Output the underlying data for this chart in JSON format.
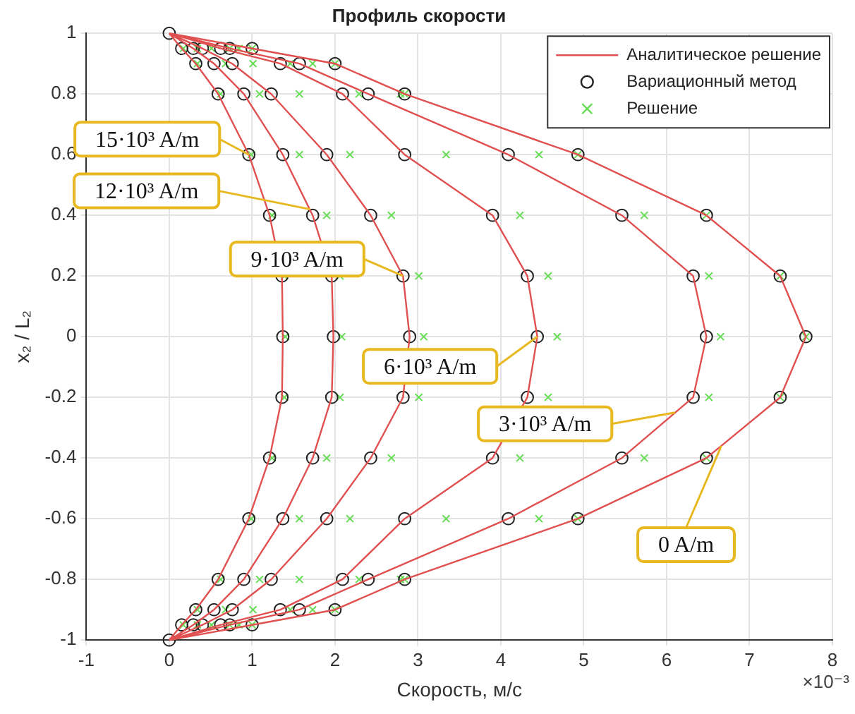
{
  "chart_data": {
    "type": "scatter",
    "title": "Профиль скорости",
    "xlabel": "Скорость, м/с",
    "ylabel": "x₂ / L₂",
    "xlim": [
      -1,
      8
    ],
    "xticks": [
      -1,
      0,
      1,
      2,
      3,
      4,
      5,
      6,
      7,
      8
    ],
    "ylim": [
      -1,
      1
    ],
    "yticks": [
      -1,
      -0.8,
      -0.6,
      -0.4,
      -0.2,
      0,
      0.2,
      0.4,
      0.6,
      0.8,
      1
    ],
    "grid": true,
    "legend": "top right",
    "series": [
      {
        "name": "Аналитическое решение",
        "type": "line",
        "color": "#e05050",
        "marker": "none",
        "line_style": "solid",
        "x": [
          0,
          1.0,
          2.0,
          2.84,
          4.93,
          6.48,
          7.37,
          7.68,
          7.37,
          6.48,
          4.93,
          2.84,
          2.0,
          1.0,
          0,
          null,
          0,
          0.73,
          1.57,
          2.4,
          4.09,
          5.46,
          6.32,
          6.48,
          6.32,
          5.46,
          4.09,
          2.4,
          1.57,
          0.73,
          0,
          null,
          0,
          0.62,
          1.34,
          2.09,
          2.84,
          3.9,
          4.32,
          4.44,
          4.32,
          3.9,
          2.84,
          2.09,
          1.34,
          0.62,
          0,
          null,
          0,
          0.4,
          0.76,
          1.23,
          1.9,
          2.43,
          2.82,
          2.9,
          2.82,
          2.43,
          1.9,
          1.23,
          0.76,
          0.4,
          0,
          null,
          0,
          0.29,
          0.54,
          0.9,
          1.37,
          1.73,
          1.96,
          1.98,
          1.96,
          1.73,
          1.37,
          0.9,
          0.54,
          0.29,
          0,
          null,
          0,
          0.15,
          0.32,
          0.59,
          0.96,
          1.21,
          1.36,
          1.37,
          1.36,
          1.21,
          0.96,
          0.59,
          0.32,
          0.15,
          0
        ],
        "values": [
          1,
          0.95,
          0.9,
          0.8,
          0.6,
          0.4,
          0.2,
          0,
          -0.2,
          -0.4,
          -0.6,
          -0.8,
          -0.9,
          -0.95,
          -1,
          null,
          1,
          0.95,
          0.9,
          0.8,
          0.6,
          0.4,
          0.2,
          0,
          -0.2,
          -0.4,
          -0.6,
          -0.8,
          -0.9,
          -0.95,
          -1,
          null,
          1,
          0.95,
          0.9,
          0.8,
          0.6,
          0.4,
          0.2,
          0,
          -0.2,
          -0.4,
          -0.6,
          -0.8,
          -0.9,
          -0.95,
          -1,
          null,
          1,
          0.95,
          0.9,
          0.8,
          0.6,
          0.4,
          0.2,
          0,
          -0.2,
          -0.4,
          -0.6,
          -0.8,
          -0.9,
          -0.95,
          -1,
          null,
          1,
          0.95,
          0.9,
          0.8,
          0.6,
          0.4,
          0.2,
          0,
          -0.2,
          -0.4,
          -0.6,
          -0.8,
          -0.9,
          -0.95,
          -1,
          null,
          1,
          0.95,
          0.9,
          0.8,
          0.6,
          0.4,
          0.2,
          0,
          -0.2,
          -0.4,
          -0.6,
          -0.8,
          -0.9,
          -0.95,
          -1
        ]
      },
      {
        "name": "Вариационный метод",
        "type": "scatter",
        "color": "#222222",
        "marker": "circle",
        "x": [
          0,
          1.0,
          2.0,
          2.84,
          4.93,
          6.48,
          7.37,
          7.68,
          7.37,
          6.48,
          4.93,
          2.84,
          2.0,
          1.0,
          0,
          0.73,
          1.57,
          2.4,
          4.09,
          5.46,
          6.32,
          6.48,
          6.32,
          5.46,
          4.09,
          2.4,
          1.57,
          0.73,
          0.62,
          1.34,
          2.09,
          2.84,
          3.9,
          4.32,
          4.44,
          4.32,
          3.9,
          2.84,
          2.09,
          1.34,
          0.62,
          0.4,
          0.76,
          1.23,
          1.9,
          2.43,
          2.82,
          2.9,
          2.82,
          2.43,
          1.9,
          1.23,
          0.76,
          0.4,
          0.29,
          0.54,
          0.9,
          1.37,
          1.73,
          1.96,
          1.98,
          1.96,
          1.73,
          1.37,
          0.9,
          0.54,
          0.29,
          0.15,
          0.32,
          0.59,
          0.96,
          1.21,
          1.36,
          1.37,
          1.36,
          1.21,
          0.96,
          0.59,
          0.32,
          0.15
        ],
        "values": [
          1,
          0.95,
          0.9,
          0.8,
          0.6,
          0.4,
          0.2,
          0,
          -0.2,
          -0.4,
          -0.6,
          -0.8,
          -0.9,
          -0.95,
          -1,
          0.95,
          0.9,
          0.8,
          0.6,
          0.4,
          0.2,
          0,
          -0.2,
          -0.4,
          -0.6,
          -0.8,
          -0.9,
          -0.95,
          0.95,
          0.9,
          0.8,
          0.6,
          0.4,
          0.2,
          0,
          -0.2,
          -0.4,
          -0.6,
          -0.8,
          -0.9,
          -0.95,
          0.95,
          0.9,
          0.8,
          0.6,
          0.4,
          0.2,
          0,
          -0.2,
          -0.4,
          -0.6,
          -0.8,
          -0.9,
          -0.95,
          0.95,
          0.9,
          0.8,
          0.6,
          0.4,
          0.2,
          0,
          -0.2,
          -0.4,
          -0.6,
          -0.8,
          -0.9,
          -0.95,
          0.95,
          0.9,
          0.8,
          0.6,
          0.4,
          0.2,
          0,
          -0.2,
          -0.4,
          -0.6,
          -0.8,
          -0.9,
          -0.95
        ]
      },
      {
        "name": "Решение",
        "type": "scatter",
        "color": "#66dd55",
        "marker": "cross",
        "x": [
          1.0,
          2.0,
          2.84,
          4.93,
          6.48,
          7.37,
          7.68,
          7.37,
          6.48,
          4.93,
          2.84,
          2.0,
          1.0,
          0.84,
          1.73,
          2.79,
          4.46,
          5.73,
          6.51,
          6.65,
          6.51,
          5.73,
          4.46,
          2.79,
          1.73,
          0.84,
          0.73,
          1.46,
          2.29,
          3.34,
          4.23,
          4.57,
          4.68,
          4.57,
          4.23,
          3.34,
          2.29,
          1.46,
          0.73,
          0.51,
          1.01,
          1.57,
          2.18,
          2.68,
          3.01,
          3.07,
          3.01,
          2.68,
          2.18,
          1.57,
          1.01,
          0.51,
          0.34,
          0.68,
          1.09,
          1.57,
          1.9,
          2.06,
          2.08,
          2.06,
          1.9,
          1.57,
          1.09,
          0.68,
          0.34,
          0.17,
          0.34,
          0.62,
          0.99,
          1.24,
          1.39,
          1.4,
          1.39,
          1.24,
          0.99,
          0.62,
          0.34,
          0.17
        ],
        "values": [
          0.95,
          0.9,
          0.8,
          0.6,
          0.4,
          0.2,
          0,
          -0.2,
          -0.4,
          -0.6,
          -0.8,
          -0.9,
          -0.95,
          0.95,
          0.9,
          0.8,
          0.6,
          0.4,
          0.2,
          0,
          -0.2,
          -0.4,
          -0.6,
          -0.8,
          -0.9,
          -0.95,
          0.95,
          0.9,
          0.8,
          0.6,
          0.4,
          0.2,
          0,
          -0.2,
          -0.4,
          -0.6,
          -0.8,
          -0.9,
          -0.95,
          0.95,
          0.9,
          0.8,
          0.6,
          0.4,
          0.2,
          0,
          -0.2,
          -0.4,
          -0.6,
          -0.8,
          -0.9,
          -0.95,
          0.95,
          0.9,
          0.8,
          0.6,
          0.4,
          0.2,
          0,
          -0.2,
          -0.4,
          -0.6,
          -0.8,
          -0.9,
          -0.95,
          0.95,
          0.9,
          0.8,
          0.6,
          0.4,
          0.2,
          0,
          -0.2,
          -0.4,
          -0.6,
          -0.8,
          -0.9,
          -0.95
        ]
      }
    ],
    "annotations": [
      {
        "text": "15·10³ A/m",
        "x": 0.96,
        "y": 0.6
      },
      {
        "text": "12·10³ A/m",
        "x": 1.7,
        "y": 0.42
      },
      {
        "text": "9·10³ A/m",
        "x": 2.82,
        "y": 0.2
      },
      {
        "text": "6·10³ A/m",
        "x": 4.44,
        "y": 0
      },
      {
        "text": "3·10³ A/m",
        "x": 6.1,
        "y": -0.25
      },
      {
        "text": "0 A/m",
        "x": 6.66,
        "y": -0.36
      },
      "×10⁻³"
    ]
  }
}
